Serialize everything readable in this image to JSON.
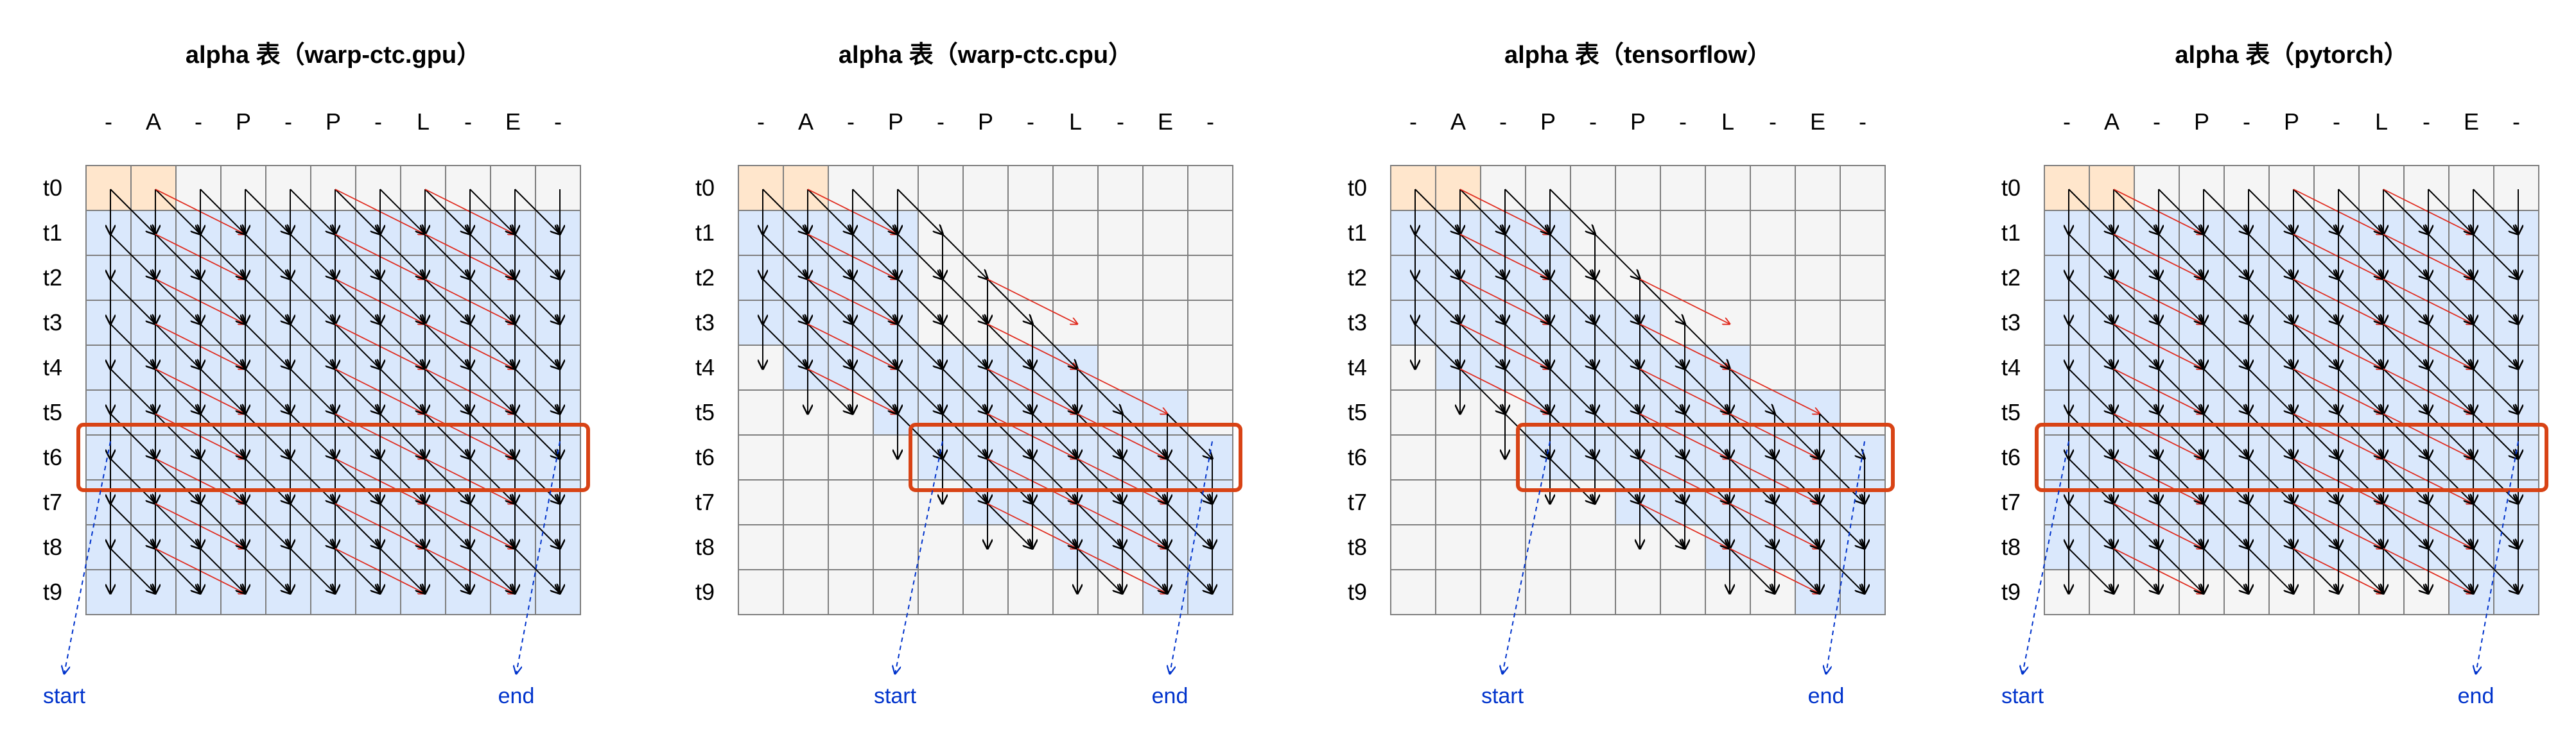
{
  "labels": [
    "-",
    "A",
    "-",
    "P",
    "-",
    "P",
    "-",
    "L",
    "-",
    "E",
    "-"
  ],
  "time_steps": [
    "t0",
    "t1",
    "t2",
    "t3",
    "t4",
    "t5",
    "t6",
    "t7",
    "t8",
    "t9"
  ],
  "start_label": "start",
  "end_label": "end",
  "highlight_time_step": 6,
  "colors": {
    "cell_empty": "#f5f5f5",
    "cell_active": "#dae8fc",
    "cell_initial": "#ffe6cc",
    "cell_border": "#7f7f7f",
    "active_border": "#6c8ebf",
    "initial_border": "#d79b00",
    "arrow": "#000000",
    "skip_arrow": "#e0291c",
    "highlight": "#d84315",
    "start_end": "#0033cc"
  },
  "panels": [
    {
      "title": "alpha 表（warp-ctc.gpu）",
      "active": [
        [
          0,
          1
        ],
        [
          0,
          10
        ],
        [
          0,
          10
        ],
        [
          0,
          10
        ],
        [
          0,
          10
        ],
        [
          0,
          10
        ],
        [
          0,
          10
        ],
        [
          0,
          10
        ],
        [
          0,
          10
        ],
        [
          0,
          10
        ]
      ],
      "arrow_rows": [
        [
          0,
          10
        ],
        [
          0,
          10
        ],
        [
          0,
          10
        ],
        [
          0,
          10
        ],
        [
          0,
          10
        ],
        [
          0,
          10
        ],
        [
          0,
          10
        ],
        [
          0,
          10
        ],
        [
          0,
          10
        ]
      ],
      "lower_band": [
        [
          0,
          10
        ],
        [
          0,
          10
        ],
        [
          0,
          10
        ],
        [
          0,
          10
        ],
        [
          0,
          10
        ],
        [
          0,
          10
        ],
        [
          0,
          10
        ],
        [
          0,
          10
        ],
        [
          0,
          10
        ],
        [
          0,
          10
        ]
      ],
      "highlight_cols": [
        0,
        10
      ]
    },
    {
      "title": "alpha 表（warp-ctc.cpu）",
      "active": [
        [
          0,
          1
        ],
        [
          0,
          3
        ],
        [
          0,
          3
        ],
        [
          0,
          3
        ],
        [
          1,
          7
        ],
        [
          3,
          9
        ],
        [
          4,
          10
        ],
        [
          5,
          10
        ],
        [
          7,
          10
        ],
        [
          9,
          10
        ]
      ],
      "arrow_rows": [
        [
          0,
          3
        ],
        [
          0,
          4
        ],
        [
          0,
          5
        ],
        [
          0,
          6
        ],
        [
          1,
          7
        ],
        [
          3,
          9
        ],
        [
          4,
          10
        ],
        [
          5,
          10
        ],
        [
          7,
          10
        ]
      ],
      "lower_band": [
        [
          0,
          1
        ],
        [
          0,
          3
        ],
        [
          0,
          3
        ],
        [
          0,
          3
        ],
        [
          1,
          5
        ],
        [
          3,
          7
        ],
        [
          5,
          9
        ],
        [
          7,
          10
        ],
        [
          9,
          10
        ],
        [
          9,
          10
        ]
      ],
      "highlight_cols": [
        4,
        10
      ]
    },
    {
      "title": "alpha 表（tensorflow）",
      "active": [
        [
          0,
          1
        ],
        [
          0,
          3
        ],
        [
          0,
          3
        ],
        [
          0,
          5
        ],
        [
          1,
          7
        ],
        [
          3,
          9
        ],
        [
          3,
          10
        ],
        [
          5,
          10
        ],
        [
          7,
          10
        ],
        [
          9,
          10
        ]
      ],
      "arrow_rows": [
        [
          0,
          3
        ],
        [
          0,
          4
        ],
        [
          0,
          5
        ],
        [
          0,
          6
        ],
        [
          1,
          7
        ],
        [
          2,
          9
        ],
        [
          3,
          10
        ],
        [
          5,
          10
        ],
        [
          7,
          10
        ]
      ],
      "lower_band": [
        [
          0,
          1
        ],
        [
          0,
          3
        ],
        [
          0,
          3
        ],
        [
          0,
          5
        ],
        [
          1,
          7
        ],
        [
          3,
          9
        ],
        [
          3,
          10
        ],
        [
          5,
          10
        ],
        [
          7,
          10
        ],
        [
          9,
          10
        ]
      ],
      "highlight_cols": [
        3,
        10
      ]
    },
    {
      "title": "alpha 表（pytorch）",
      "active": [
        [
          0,
          1
        ],
        [
          0,
          10
        ],
        [
          0,
          10
        ],
        [
          0,
          10
        ],
        [
          0,
          10
        ],
        [
          0,
          10
        ],
        [
          0,
          10
        ],
        [
          0,
          10
        ],
        [
          0,
          10
        ],
        [
          9,
          10
        ]
      ],
      "arrow_rows": [
        [
          0,
          10
        ],
        [
          0,
          10
        ],
        [
          0,
          10
        ],
        [
          0,
          10
        ],
        [
          0,
          10
        ],
        [
          0,
          10
        ],
        [
          0,
          10
        ],
        [
          0,
          10
        ],
        [
          0,
          10
        ]
      ],
      "lower_band": [
        [
          0,
          10
        ],
        [
          0,
          10
        ],
        [
          0,
          10
        ],
        [
          0,
          10
        ],
        [
          0,
          10
        ],
        [
          0,
          10
        ],
        [
          0,
          10
        ],
        [
          0,
          10
        ],
        [
          0,
          10
        ],
        [
          0,
          10
        ]
      ],
      "highlight_cols": [
        0,
        10
      ]
    }
  ]
}
